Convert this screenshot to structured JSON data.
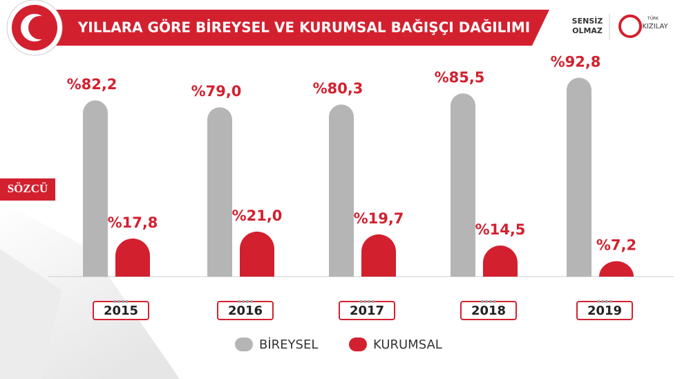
{
  "header": {
    "brand_left": "SENSİZ",
    "brand_left_2": "OLMAZ",
    "brand_right_small": "TÜRK",
    "brand_right": "KIZILAY",
    "watermark": "SÖZCÜ"
  },
  "chart_data": {
    "type": "bar",
    "title": "YILLARA GÖRE BİREYSEL VE KURUMSAL BAĞIŞÇI DAĞILIMI",
    "categories": [
      "2015",
      "2016",
      "2017",
      "2018",
      "2019"
    ],
    "series": [
      {
        "name": "BİREYSEL",
        "color": "#b5b5b5",
        "values": [
          82.2,
          79.0,
          80.3,
          85.5,
          92.8
        ],
        "value_labels": [
          "%82,2",
          "%79,0",
          "%80,3",
          "%85,5",
          "%92,8"
        ]
      },
      {
        "name": "KURUMSAL",
        "color": "#d3202f",
        "values": [
          17.8,
          21.0,
          19.7,
          14.5,
          7.2
        ],
        "value_labels": [
          "%17,8",
          "%21,0",
          "%19,7",
          "%14,5",
          "%7,2"
        ]
      }
    ]
  }
}
